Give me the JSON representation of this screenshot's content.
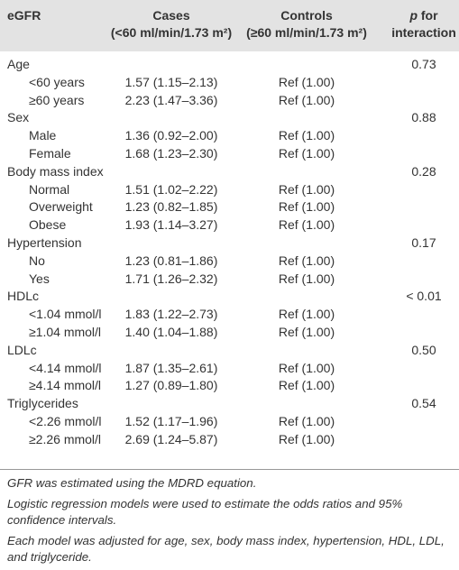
{
  "header": {
    "egfr": "eGFR",
    "cases": {
      "title": "Cases",
      "subtitle": "(<60 ml/min/1.73 m²)"
    },
    "controls": {
      "title": "Controls",
      "subtitle": "(≥60 ml/min/1.73 m²)"
    },
    "p": {
      "symbol": "p",
      "line1": "for",
      "line2": "interaction"
    }
  },
  "groups": [
    {
      "label": "Age",
      "p": "0.73",
      "rows": [
        {
          "label": "<60 years",
          "cases": "1.57 (1.15–2.13)",
          "controls": "Ref (1.00)"
        },
        {
          "label": "≥60 years",
          "cases": "2.23 (1.47–3.36)",
          "controls": "Ref (1.00)"
        }
      ]
    },
    {
      "label": "Sex",
      "p": "0.88",
      "rows": [
        {
          "label": "Male",
          "cases": "1.36 (0.92–2.00)",
          "controls": "Ref (1.00)"
        },
        {
          "label": "Female",
          "cases": "1.68 (1.23–2.30)",
          "controls": "Ref (1.00)"
        }
      ]
    },
    {
      "label": "Body mass index",
      "p": "0.28",
      "rows": [
        {
          "label": "Normal",
          "cases": "1.51 (1.02–2.22)",
          "controls": "Ref (1.00)"
        },
        {
          "label": "Overweight",
          "cases": "1.23 (0.82–1.85)",
          "controls": "Ref (1.00)"
        },
        {
          "label": "Obese",
          "cases": "1.93 (1.14–3.27)",
          "controls": "Ref (1.00)"
        }
      ]
    },
    {
      "label": "Hypertension",
      "p": "0.17",
      "rows": [
        {
          "label": "No",
          "cases": "1.23 (0.81–1.86)",
          "controls": "Ref (1.00)"
        },
        {
          "label": "Yes",
          "cases": "1.71 (1.26–2.32)",
          "controls": "Ref (1.00)"
        }
      ]
    },
    {
      "label": "HDLc",
      "p": "< 0.01",
      "rows": [
        {
          "label": "<1.04 mmol/l",
          "cases": "1.83 (1.22–2.73)",
          "controls": "Ref (1.00)"
        },
        {
          "label": "≥1.04 mmol/l",
          "cases": "1.40 (1.04–1.88)",
          "controls": "Ref (1.00)"
        }
      ]
    },
    {
      "label": "LDLc",
      "p": "0.50",
      "rows": [
        {
          "label": "<4.14 mmol/l",
          "cases": "1.87 (1.35–2.61)",
          "controls": "Ref (1.00)"
        },
        {
          "label": "≥4.14 mmol/l",
          "cases": "1.27 (0.89–1.80)",
          "controls": "Ref (1.00)"
        }
      ]
    },
    {
      "label": "Triglycerides",
      "p": "0.54",
      "rows": [
        {
          "label": "<2.26 mmol/l",
          "cases": "1.52 (1.17–1.96)",
          "controls": "Ref (1.00)"
        },
        {
          "label": "≥2.26 mmol/l",
          "cases": "2.69 (1.24–5.87)",
          "controls": "Ref (1.00)"
        }
      ]
    }
  ],
  "footnotes": [
    "GFR was estimated using the MDRD equation.",
    "Logistic regression models were used to estimate the odds ratios and 95% confidence intervals.",
    "Each model was adjusted for age, sex, body mass index, hypertension, HDL, LDL, and triglyceride."
  ]
}
